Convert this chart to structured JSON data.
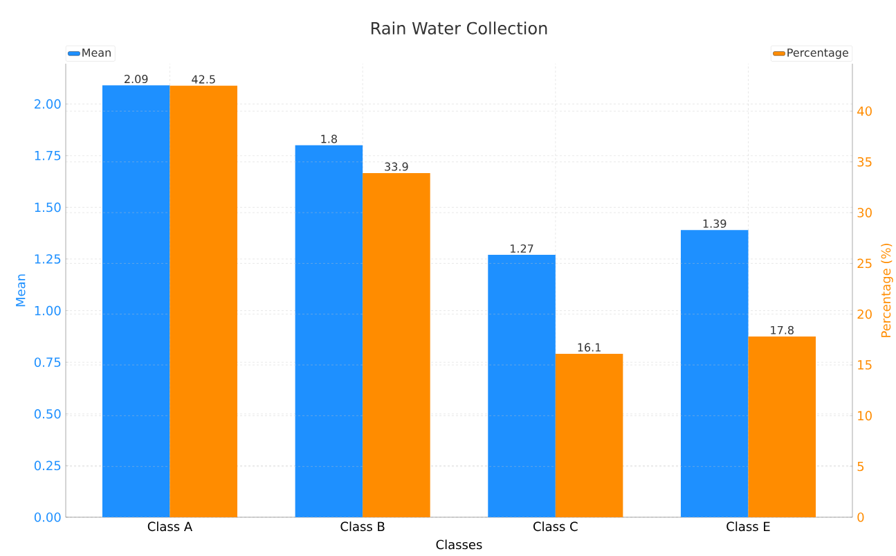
{
  "chart_data": {
    "type": "bar",
    "title": "Rain Water Collection",
    "xlabel": "Classes",
    "ylabel": "Mean",
    "y2label": "Percentage (%)",
    "categories": [
      "Class A",
      "Class B",
      "Class C",
      "Class E"
    ],
    "series": [
      {
        "name": "Mean",
        "color": "#1e90ff",
        "values": [
          2.09,
          1.8,
          1.27,
          1.39
        ]
      },
      {
        "name": "Percentage",
        "color": "#ff8c00",
        "axis": "y2",
        "values": [
          42.5,
          33.9,
          16.1,
          17.8
        ]
      }
    ],
    "ylim": [
      0,
      2.195
    ],
    "yticks": [
      {
        "value": 0,
        "label": "0.00"
      },
      {
        "value": 0.25,
        "label": "0.25"
      },
      {
        "value": 0.5,
        "label": "0.50"
      },
      {
        "value": 0.75,
        "label": "0.75"
      },
      {
        "value": 1,
        "label": "1.00"
      },
      {
        "value": 1.25,
        "label": "1.25"
      },
      {
        "value": 1.5,
        "label": "1.50"
      },
      {
        "value": 1.75,
        "label": "1.75"
      },
      {
        "value": 2,
        "label": "2.00"
      }
    ],
    "y2lim": [
      0,
      44.67
    ],
    "y2ticks": [
      0,
      5,
      10,
      15,
      20,
      25,
      30,
      35,
      40
    ],
    "grid": true,
    "legend": "top",
    "data_labels": true
  }
}
